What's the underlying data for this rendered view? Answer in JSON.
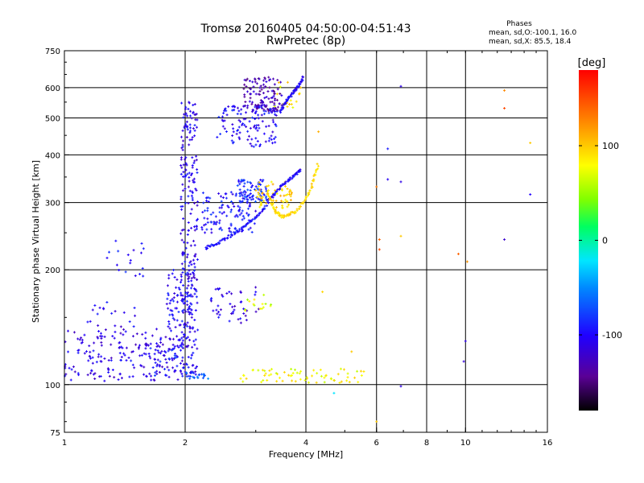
{
  "title": {
    "line1": "Tromsø 20160405 04:50:00-04:51:43",
    "line2": "RwPretec (8p)"
  },
  "stats": {
    "heading": "Phases",
    "o_line": "mean, sd,O:-100.1, 16.0",
    "x_line": "mean, sd,X: 85.5, 18.4"
  },
  "colorbar": {
    "unit_label": "[deg]",
    "ticks": [
      {
        "value": 100,
        "label": "100"
      },
      {
        "value": 0,
        "label": "0"
      },
      {
        "value": -100,
        "label": "-100"
      }
    ],
    "range": [
      -180,
      180
    ]
  },
  "chart_data": {
    "type": "scatter",
    "xlabel": "Frequency [MHz]",
    "ylabel": "Stationary phase Virtual Height [km]",
    "xscale": "log",
    "yscale": "log",
    "xlim": [
      1,
      16
    ],
    "ylim": [
      75,
      750
    ],
    "xticks": [
      {
        "value": 1,
        "label": "1"
      },
      {
        "value": 2,
        "label": "2"
      },
      {
        "value": 4,
        "label": "4"
      },
      {
        "value": 6,
        "label": "6"
      },
      {
        "value": 8,
        "label": "8"
      },
      {
        "value": 10,
        "label": "10"
      },
      {
        "value": 16,
        "label": "16"
      }
    ],
    "yticks": [
      {
        "value": 75,
        "label": "75"
      },
      {
        "value": 100,
        "label": "100"
      },
      {
        "value": 200,
        "label": "200"
      },
      {
        "value": 300,
        "label": "300"
      },
      {
        "value": 400,
        "label": "400"
      },
      {
        "value": 500,
        "label": "500"
      },
      {
        "value": 600,
        "label": "600"
      },
      {
        "value": 750,
        "label": "750"
      }
    ],
    "grid_x": [
      2,
      4,
      6,
      8,
      10
    ],
    "grid_y": [
      100,
      200,
      300,
      400,
      500,
      600
    ],
    "color_encodes": "phase [deg]",
    "clusters": [
      {
        "f": [
          1.0,
          1.95
        ],
        "h": [
          102,
          140
        ],
        "phase": -110,
        "n": 160
      },
      {
        "f": [
          1.1,
          1.5
        ],
        "h": [
          115,
          165
        ],
        "phase": -105,
        "n": 40
      },
      {
        "f": [
          1.25,
          1.6
        ],
        "h": [
          190,
          240
        ],
        "phase": -100,
        "n": 18
      },
      {
        "f": [
          1.6,
          2.0
        ],
        "h": [
          105,
          130
        ],
        "phase": -95,
        "n": 50
      },
      {
        "f": [
          1.8,
          2.1
        ],
        "h": [
          130,
          200
        ],
        "phase": -100,
        "n": 90
      },
      {
        "f": [
          1.95,
          2.15
        ],
        "h": [
          105,
          560
        ],
        "phase": -105,
        "n": 260
      },
      {
        "f": [
          2.2,
          3.0
        ],
        "h": [
          250,
          320
        ],
        "phase": -95,
        "n": 120
      },
      {
        "f": [
          2.7,
          3.2
        ],
        "h": [
          300,
          345
        ],
        "phase": -85,
        "n": 70
      },
      {
        "f": [
          2.4,
          3.4
        ],
        "h": [
          420,
          540
        ],
        "phase": -100,
        "n": 130
      },
      {
        "f": [
          2.8,
          3.5
        ],
        "h": [
          520,
          640
        ],
        "phase": -130,
        "n": 110
      },
      {
        "f": [
          2.3,
          3.1
        ],
        "h": [
          145,
          180
        ],
        "phase": -110,
        "n": 45
      },
      {
        "f": [
          3.0,
          3.7
        ],
        "h": [
          290,
          340
        ],
        "phase": 95,
        "n": 60
      },
      {
        "f": [
          3.3,
          3.9
        ],
        "h": [
          520,
          620
        ],
        "phase": 90,
        "n": 20
      },
      {
        "f": [
          2.7,
          5.6
        ],
        "h": [
          101,
          110
        ],
        "phase": 80,
        "n": 70
      },
      {
        "f": [
          2.8,
          3.3
        ],
        "h": [
          155,
          175
        ],
        "phase": 70,
        "n": 15
      },
      {
        "f": [
          2.0,
          2.3
        ],
        "h": [
          103,
          108
        ],
        "phase": -60,
        "n": 20
      }
    ],
    "traces": [
      {
        "f": [
          2.25,
          2.45,
          2.7,
          2.95,
          3.2
        ],
        "h": [
          228,
          237,
          252,
          270,
          295
        ],
        "phase": -95
      },
      {
        "f": [
          3.2,
          3.45,
          3.7,
          3.9
        ],
        "h": [
          300,
          330,
          350,
          365
        ],
        "phase": -100
      },
      {
        "f": [
          3.2,
          3.35,
          3.5,
          3.8,
          4.1,
          4.3
        ],
        "h": [
          320,
          285,
          275,
          285,
          320,
          380
        ],
        "phase": 95
      },
      {
        "f": [
          3.45,
          3.6,
          3.8,
          3.95
        ],
        "h": [
          520,
          560,
          600,
          640
        ],
        "phase": -100
      }
    ],
    "points": [
      {
        "f": 6.9,
        "h": 605,
        "phase": -110
      },
      {
        "f": 6.4,
        "h": 415,
        "phase": -90
      },
      {
        "f": 6.4,
        "h": 345,
        "phase": -105
      },
      {
        "f": 6.1,
        "h": 240,
        "phase": 140
      },
      {
        "f": 6.1,
        "h": 226,
        "phase": 150
      },
      {
        "f": 6.9,
        "h": 340,
        "phase": -110
      },
      {
        "f": 6.9,
        "h": 245,
        "phase": 100
      },
      {
        "f": 9.6,
        "h": 220,
        "phase": 140
      },
      {
        "f": 10.1,
        "h": 210,
        "phase": 120
      },
      {
        "f": 10.0,
        "h": 130,
        "phase": -110
      },
      {
        "f": 9.9,
        "h": 115,
        "phase": -115
      },
      {
        "f": 12.5,
        "h": 590,
        "phase": 125
      },
      {
        "f": 12.5,
        "h": 530,
        "phase": 150
      },
      {
        "f": 12.5,
        "h": 240,
        "phase": -120
      },
      {
        "f": 14.5,
        "h": 315,
        "phase": -100
      },
      {
        "f": 14.5,
        "h": 430,
        "phase": 100
      },
      {
        "f": 6.9,
        "h": 99,
        "phase": -110
      },
      {
        "f": 6.0,
        "h": 80,
        "phase": 100
      },
      {
        "f": 4.7,
        "h": 95,
        "phase": -20
      },
      {
        "f": 6.0,
        "h": 330,
        "phase": 130
      },
      {
        "f": 4.3,
        "h": 460,
        "phase": 110
      },
      {
        "f": 4.4,
        "h": 175,
        "phase": 95
      },
      {
        "f": 5.2,
        "h": 122,
        "phase": 100
      }
    ]
  }
}
